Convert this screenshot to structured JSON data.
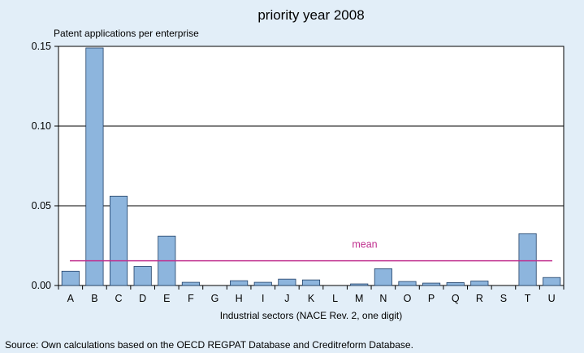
{
  "chart_data": {
    "type": "bar",
    "title": "priority year 2008",
    "ylabel": "Patent applications per enterprise",
    "xlabel": "Industrial sectors (NACE Rev. 2, one digit)",
    "categories": [
      "A",
      "B",
      "C",
      "D",
      "E",
      "F",
      "G",
      "H",
      "I",
      "J",
      "K",
      "L",
      "M",
      "N",
      "O",
      "P",
      "Q",
      "R",
      "S",
      "T",
      "U"
    ],
    "values": [
      0.009,
      0.149,
      0.056,
      0.012,
      0.031,
      0.002,
      0.0,
      0.003,
      0.002,
      0.004,
      0.0035,
      0.0,
      0.001,
      0.0105,
      0.0025,
      0.0015,
      0.0018,
      0.0028,
      0.0,
      0.0325,
      0.005
    ],
    "ylim": [
      0,
      0.15
    ],
    "yticks": [
      0,
      0.05,
      0.1,
      0.15
    ],
    "ytick_labels": [
      "0.00",
      "0.05",
      "0.10",
      "0.15"
    ],
    "grid": true,
    "mean": {
      "value": 0.0155,
      "label": "mean",
      "color": "#c0308f"
    },
    "bar_color": "#8db5dd",
    "bar_edge_color": "#1f3f66"
  },
  "source_note": "Source: Own calculations based on the OECD REGPAT Database and Creditreform Database."
}
